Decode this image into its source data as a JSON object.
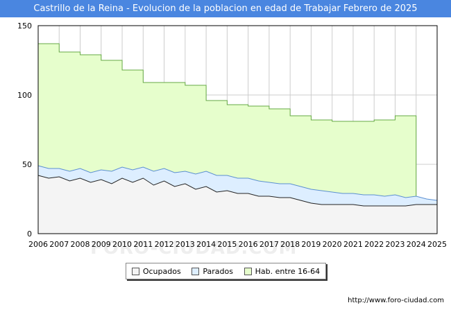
{
  "header": {
    "title": "Castrillo de la Reina - Evolucion de la poblacion en edad de Trabajar Febrero de 2025"
  },
  "footer": {
    "url": "http://www.foro-ciudad.com"
  },
  "watermark": {
    "text": "FORO-CIUDAD.COM"
  },
  "colors": {
    "background": "#ffffff",
    "title_bar": "#4a86e0",
    "hab_fill": "#e6fecc",
    "hab_line": "#66aa44",
    "parados_fill": "#ddeeff",
    "parados_line": "#5b8fd0",
    "ocupados_fill": "#f4f4f4",
    "ocupados_line": "#222222",
    "grid": "#cccccc"
  },
  "chart_data": {
    "type": "area",
    "title": "Castrillo de la Reina - Evolucion de la poblacion en edad de Trabajar Febrero de 2025",
    "xlabel": "",
    "ylabel": "",
    "xlim": [
      2006,
      2025
    ],
    "ylim": [
      0,
      150
    ],
    "yticks": [
      0,
      50,
      100,
      150
    ],
    "xticks": [
      "2006",
      "2007",
      "2008",
      "2009",
      "2010",
      "2011",
      "2012",
      "2013",
      "2014",
      "2015",
      "2016",
      "2017",
      "2018",
      "2019",
      "2020",
      "2021",
      "2022",
      "2023",
      "2024",
      "2025"
    ],
    "grid": true,
    "legend_position": "bottom",
    "legend": [
      "Ocupados",
      "Parados",
      "Hab. entre 16-64"
    ],
    "series": [
      {
        "name": "Hab. entre 16-64",
        "x": [
          2006,
          2007,
          2008,
          2009,
          2010,
          2011,
          2012,
          2013,
          2014,
          2015,
          2016,
          2017,
          2018,
          2019,
          2020,
          2021,
          2022,
          2023
        ],
        "values": [
          137,
          131,
          129,
          125,
          118,
          109,
          109,
          107,
          96,
          93,
          92,
          90,
          85,
          82,
          81,
          81,
          82,
          85
        ]
      },
      {
        "name": "Parados",
        "x": [
          2006.0,
          2006.5,
          2007.0,
          2007.5,
          2008.0,
          2008.5,
          2009.0,
          2009.5,
          2010.0,
          2010.5,
          2011.0,
          2011.5,
          2012.0,
          2012.5,
          2013.0,
          2013.5,
          2014.0,
          2014.5,
          2015.0,
          2015.5,
          2016.0,
          2016.5,
          2017.0,
          2017.5,
          2018.0,
          2018.5,
          2019.0,
          2019.5,
          2020.0,
          2020.5,
          2021.0,
          2021.5,
          2022.0,
          2022.5,
          2023.0,
          2023.5,
          2024.0,
          2024.5,
          2025.0
        ],
        "values": [
          49,
          47,
          47,
          45,
          47,
          44,
          46,
          45,
          48,
          46,
          48,
          45,
          47,
          44,
          45,
          43,
          45,
          42,
          42,
          40,
          40,
          38,
          37,
          36,
          36,
          34,
          32,
          31,
          30,
          29,
          29,
          28,
          28,
          27,
          28,
          26,
          27,
          25,
          24
        ]
      },
      {
        "name": "Ocupados",
        "x": [
          2006.0,
          2006.5,
          2007.0,
          2007.5,
          2008.0,
          2008.5,
          2009.0,
          2009.5,
          2010.0,
          2010.5,
          2011.0,
          2011.5,
          2012.0,
          2012.5,
          2013.0,
          2013.5,
          2014.0,
          2014.5,
          2015.0,
          2015.5,
          2016.0,
          2016.5,
          2017.0,
          2017.5,
          2018.0,
          2018.5,
          2019.0,
          2019.5,
          2020.0,
          2020.5,
          2021.0,
          2021.5,
          2022.0,
          2022.5,
          2023.0,
          2023.5,
          2024.0,
          2024.5,
          2025.0
        ],
        "values": [
          42,
          40,
          41,
          38,
          40,
          37,
          39,
          36,
          40,
          37,
          40,
          35,
          38,
          34,
          36,
          32,
          34,
          30,
          31,
          29,
          29,
          27,
          27,
          26,
          26,
          24,
          22,
          21,
          21,
          21,
          21,
          20,
          20,
          20,
          20,
          20,
          21,
          21,
          21
        ]
      }
    ]
  }
}
